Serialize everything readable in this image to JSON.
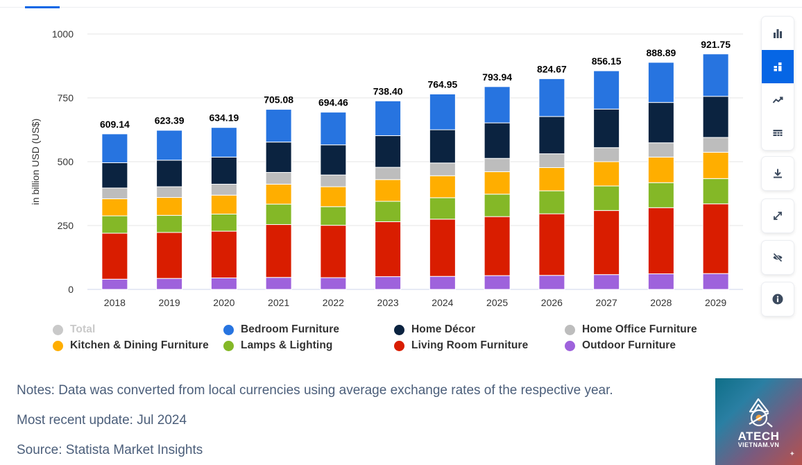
{
  "toolbar": {
    "buttons": [
      {
        "name": "bar-chart-button",
        "icon": "bar-chart-icon",
        "active": false
      },
      {
        "name": "stacked-bar-button",
        "icon": "stacked-bar-icon",
        "active": true
      },
      {
        "name": "line-chart-button",
        "icon": "line-chart-icon",
        "active": false
      },
      {
        "name": "table-view-button",
        "icon": "table-icon",
        "active": false
      },
      {
        "name": "download-button",
        "icon": "download-icon",
        "active": false
      },
      {
        "name": "fullscreen-button",
        "icon": "expand-icon",
        "active": false
      },
      {
        "name": "hide-button",
        "icon": "eye-off-icon",
        "active": false
      },
      {
        "name": "info-button",
        "icon": "info-icon",
        "active": false
      }
    ]
  },
  "chart_data": {
    "type": "bar",
    "stacked": true,
    "title": "",
    "xlabel": "",
    "ylabel": "in billion USD (US$)",
    "ylim": [
      0,
      1000
    ],
    "yticks": [
      "0",
      "250",
      "500",
      "750",
      "1000"
    ],
    "grid": true,
    "categories": [
      "2018",
      "2019",
      "2020",
      "2021",
      "2022",
      "2023",
      "2024",
      "2025",
      "2026",
      "2027",
      "2028",
      "2029"
    ],
    "totals": [
      "609.14",
      "623.39",
      "634.19",
      "705.08",
      "694.46",
      "738.40",
      "764.95",
      "793.94",
      "824.67",
      "856.15",
      "888.89",
      "921.75"
    ],
    "series": [
      {
        "name": "Outdoor Furniture",
        "color": "#9e62dc",
        "values": [
          40,
          43,
          45,
          47,
          46,
          50,
          51,
          54,
          55,
          58,
          61,
          62
        ]
      },
      {
        "name": "Living Room Furniture",
        "color": "#d91d00",
        "values": [
          180,
          180,
          183,
          207,
          205,
          215,
          224,
          231,
          241,
          251,
          259,
          273
        ]
      },
      {
        "name": "Lamps & Lighting",
        "color": "#84b827",
        "values": [
          68,
          67,
          67,
          80,
          73,
          80,
          84,
          88,
          90,
          96,
          98,
          99
        ]
      },
      {
        "name": "Kitchen & Dining Furniture",
        "color": "#ffae00",
        "values": [
          67,
          70,
          74,
          78,
          78,
          85,
          86,
          88,
          91,
          95,
          100,
          103
        ]
      },
      {
        "name": "Home Office Furniture",
        "color": "#bdbdbd",
        "values": [
          42,
          42,
          43,
          46,
          46,
          48,
          50,
          52,
          54,
          55,
          56,
          58
        ]
      },
      {
        "name": "Home Décor",
        "color": "#0b2340",
        "values": [
          99,
          104,
          106,
          119,
          118,
          124,
          130,
          139,
          146,
          151,
          158,
          161
        ]
      },
      {
        "name": "Bedroom Furniture",
        "color": "#2774e0",
        "values": [
          113,
          117,
          116,
          128,
          128,
          136,
          140,
          142,
          148,
          150,
          157,
          166
        ]
      }
    ]
  },
  "legend": {
    "placement": "bottom",
    "items": [
      {
        "label": "Total",
        "color": "#c9c9c9",
        "disabled": true
      },
      {
        "label": "Bedroom Furniture",
        "color": "#2774e0",
        "disabled": false
      },
      {
        "label": "Home Décor",
        "color": "#0b2340",
        "disabled": false
      },
      {
        "label": "Home Office Furniture",
        "color": "#bdbdbd",
        "disabled": false
      },
      {
        "label": "Kitchen & Dining Furniture",
        "color": "#ffae00",
        "disabled": false
      },
      {
        "label": "Lamps & Lighting",
        "color": "#84b827",
        "disabled": false
      },
      {
        "label": "Living Room Furniture",
        "color": "#d91d00",
        "disabled": false
      },
      {
        "label": "Outdoor Furniture",
        "color": "#9e62dc",
        "disabled": false
      }
    ]
  },
  "notes": {
    "note": "Notes: Data was converted from local currencies using average exchange rates of the respective year.",
    "update": "Most recent update: Jul 2024",
    "source": "Source: Statista Market Insights"
  },
  "logo": {
    "brand": "ATECH",
    "sub": "VIETNAM.VN"
  }
}
